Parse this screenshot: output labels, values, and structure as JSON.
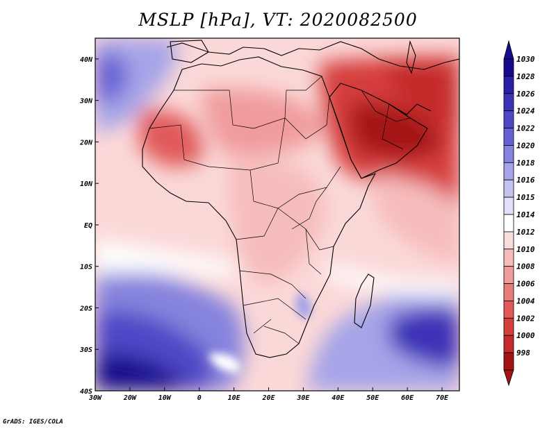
{
  "title": "MSLP [hPa], VT: 2020082500",
  "credit": "GrADS: IGES/COLA",
  "map": {
    "region": "Africa and Middle East",
    "lon_range": [
      -30,
      75
    ],
    "lat_range": [
      -40,
      45
    ],
    "lon_ticks": [
      "30W",
      "20W",
      "10W",
      "0",
      "10E",
      "20E",
      "30E",
      "40E",
      "50E",
      "60E",
      "70E"
    ],
    "lat_ticks": [
      "40N",
      "30N",
      "20N",
      "10N",
      "EQ",
      "10S",
      "20S",
      "30S",
      "40S"
    ]
  },
  "colorbar": {
    "labels": [
      "1030",
      "1028",
      "1026",
      "1024",
      "1022",
      "1020",
      "1018",
      "1016",
      "1015",
      "1014",
      "1012",
      "1010",
      "1008",
      "1006",
      "1004",
      "1002",
      "1000",
      "998"
    ],
    "colors": [
      "#170a8c",
      "#2a1fa6",
      "#3d33b8",
      "#4f47c6",
      "#6661d4",
      "#8683de",
      "#a6a4e8",
      "#c5c4f1",
      "#e1e0f8",
      "#ffffff",
      "#fbdcdc",
      "#f6bcbc",
      "#f09c9c",
      "#e97b7b",
      "#e15a5a",
      "#d63e3e",
      "#c52b2b",
      "#a51414"
    ]
  },
  "colors": {
    "land_border": "#000000",
    "high_pressure": "#2a1fa6",
    "low_pressure": "#b22222"
  }
}
